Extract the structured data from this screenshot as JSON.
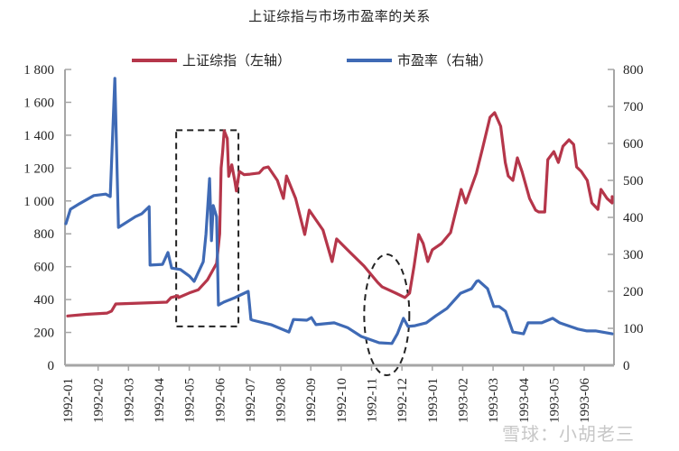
{
  "chart_data": {
    "type": "line",
    "title": "上证综指与市场市盈率的关系",
    "xlabel": "",
    "ylabel_left": "",
    "ylabel_right": "",
    "categories": [
      "1992-01",
      "1992-02",
      "1992-03",
      "1992-04",
      "1992-05",
      "1992-06",
      "1992-07",
      "1992-08",
      "1992-09",
      "1992-10",
      "1992-11",
      "1992-12",
      "1993-01",
      "1993-02",
      "1993-03",
      "1993-04",
      "1993-05",
      "1993-06"
    ],
    "y_left": {
      "range": [
        0,
        1800
      ],
      "ticks": [
        0,
        200,
        400,
        600,
        800,
        1000,
        1200,
        1400,
        1600,
        1800
      ],
      "tick_labels": [
        "0",
        "200",
        "400",
        "600",
        "800",
        "1 000",
        "1 200",
        "1 400",
        "1 600",
        "1 800"
      ]
    },
    "y_right": {
      "range": [
        0,
        800
      ],
      "ticks": [
        0,
        100,
        200,
        300,
        400,
        500,
        600,
        700,
        800
      ],
      "tick_labels": [
        "0",
        "100",
        "200",
        "300",
        "400",
        "500",
        "600",
        "700",
        "800"
      ]
    },
    "grid": false,
    "legend_position": "top",
    "series": [
      {
        "name": "上证综指（左轴）",
        "axis": "left",
        "color": "#b5364a",
        "points_month_index": [
          [
            0,
            300
          ],
          [
            0.6,
            310
          ],
          [
            1.3,
            318
          ],
          [
            1.44,
            330
          ],
          [
            1.58,
            373
          ],
          [
            3.26,
            384
          ],
          [
            3.4,
            412
          ],
          [
            3.62,
            423
          ],
          [
            3.65,
            412
          ],
          [
            4.0,
            440
          ],
          [
            4.3,
            460
          ],
          [
            4.6,
            520
          ],
          [
            4.9,
            620
          ],
          [
            5.0,
            800
          ],
          [
            5.05,
            1200
          ],
          [
            5.1,
            1300
          ],
          [
            5.15,
            1427
          ],
          [
            5.25,
            1380
          ],
          [
            5.3,
            1150
          ],
          [
            5.4,
            1220
          ],
          [
            5.5,
            1120
          ],
          [
            5.55,
            1060
          ],
          [
            5.65,
            1180
          ],
          [
            5.8,
            1160
          ],
          [
            6.0,
            1163
          ],
          [
            6.3,
            1170
          ],
          [
            6.45,
            1200
          ],
          [
            6.6,
            1207
          ],
          [
            6.9,
            1125
          ],
          [
            7.1,
            1015
          ],
          [
            7.2,
            1152
          ],
          [
            7.5,
            1015
          ],
          [
            7.8,
            796
          ],
          [
            7.95,
            944
          ],
          [
            8.4,
            823
          ],
          [
            8.7,
            631
          ],
          [
            8.85,
            769
          ],
          [
            9.3,
            686
          ],
          [
            9.75,
            604
          ],
          [
            10.2,
            505
          ],
          [
            10.35,
            477
          ],
          [
            10.8,
            439
          ],
          [
            11.1,
            412
          ],
          [
            11.25,
            439
          ],
          [
            11.4,
            604
          ],
          [
            11.55,
            796
          ],
          [
            11.7,
            741
          ],
          [
            11.85,
            631
          ],
          [
            12.0,
            703
          ],
          [
            12.3,
            741
          ],
          [
            12.6,
            807
          ],
          [
            12.95,
            1070
          ],
          [
            13.1,
            988
          ],
          [
            13.45,
            1169
          ],
          [
            13.65,
            1317
          ],
          [
            13.9,
            1509
          ],
          [
            14.05,
            1537
          ],
          [
            14.25,
            1454
          ],
          [
            14.4,
            1234
          ],
          [
            14.5,
            1152
          ],
          [
            14.65,
            1125
          ],
          [
            14.8,
            1262
          ],
          [
            14.95,
            1180
          ],
          [
            15.2,
            1015
          ],
          [
            15.4,
            944
          ],
          [
            15.5,
            933
          ],
          [
            15.7,
            933
          ],
          [
            15.8,
            1251
          ],
          [
            16.0,
            1300
          ],
          [
            16.15,
            1234
          ],
          [
            16.3,
            1333
          ],
          [
            16.5,
            1372
          ],
          [
            16.65,
            1344
          ],
          [
            16.75,
            1207
          ],
          [
            16.9,
            1180
          ],
          [
            17.1,
            1125
          ],
          [
            17.25,
            988
          ],
          [
            17.45,
            949
          ],
          [
            17.55,
            1070
          ],
          [
            17.75,
            1015
          ],
          [
            17.95,
            988
          ],
          [
            18.2,
            988
          ],
          [
            18.4,
            1026
          ]
        ]
      },
      {
        "name": "市盈率（右轴）",
        "axis": "right",
        "color": "#3f6ab5",
        "points_month_index": [
          [
            -0.09,
            383
          ],
          [
            0.09,
            422
          ],
          [
            0.39,
            437
          ],
          [
            0.86,
            459
          ],
          [
            1.25,
            463
          ],
          [
            1.4,
            456
          ],
          [
            1.55,
            776
          ],
          [
            1.67,
            373
          ],
          [
            2.23,
            402
          ],
          [
            2.44,
            410
          ],
          [
            2.68,
            429
          ],
          [
            2.71,
            271
          ],
          [
            3.12,
            273
          ],
          [
            3.3,
            305
          ],
          [
            3.42,
            263
          ],
          [
            3.71,
            259
          ],
          [
            4.01,
            241
          ],
          [
            4.16,
            227
          ],
          [
            4.46,
            280
          ],
          [
            4.55,
            354
          ],
          [
            4.67,
            505
          ],
          [
            4.73,
            337
          ],
          [
            4.79,
            432
          ],
          [
            4.9,
            402
          ],
          [
            4.96,
            163
          ],
          [
            5.14,
            171
          ],
          [
            5.5,
            183
          ],
          [
            5.94,
            200
          ],
          [
            6.03,
            124
          ],
          [
            6.09,
            122
          ],
          [
            6.69,
            110
          ],
          [
            7.28,
            90
          ],
          [
            7.43,
            124
          ],
          [
            7.87,
            122
          ],
          [
            8.02,
            129
          ],
          [
            8.17,
            110
          ],
          [
            8.77,
            115
          ],
          [
            9.21,
            102
          ],
          [
            9.66,
            78
          ],
          [
            10.25,
            61
          ],
          [
            10.67,
            59
          ],
          [
            10.85,
            85
          ],
          [
            11.05,
            127
          ],
          [
            11.2,
            105
          ],
          [
            11.43,
            107
          ],
          [
            11.8,
            115
          ],
          [
            12.12,
            134
          ],
          [
            12.48,
            154
          ],
          [
            12.93,
            195
          ],
          [
            13.29,
            207
          ],
          [
            13.46,
            227
          ],
          [
            13.52,
            229
          ],
          [
            13.82,
            207
          ],
          [
            14.02,
            159
          ],
          [
            14.2,
            159
          ],
          [
            14.41,
            146
          ],
          [
            14.65,
            90
          ],
          [
            15.0,
            85
          ],
          [
            15.15,
            115
          ],
          [
            15.6,
            115
          ],
          [
            15.96,
            127
          ],
          [
            16.19,
            115
          ],
          [
            16.79,
            98
          ],
          [
            17.09,
            93
          ],
          [
            17.39,
            93
          ],
          [
            17.92,
            85
          ]
        ]
      }
    ],
    "annotations": [
      {
        "type": "dashed-rectangle",
        "month_from": 3.6,
        "month_to": 5.5,
        "left_value_from": 220,
        "left_value_to": 1430,
        "note": "1992-05 to 1992-06 spike"
      },
      {
        "type": "dashed-ellipse",
        "center_month": 10.5,
        "center_left_value": 307,
        "note": "1992-11 trough"
      }
    ],
    "watermark": "雪球：小胡老三"
  },
  "legend": {
    "sse_label": "上证综指（左轴）",
    "pe_label": "市盈率（右轴）"
  }
}
